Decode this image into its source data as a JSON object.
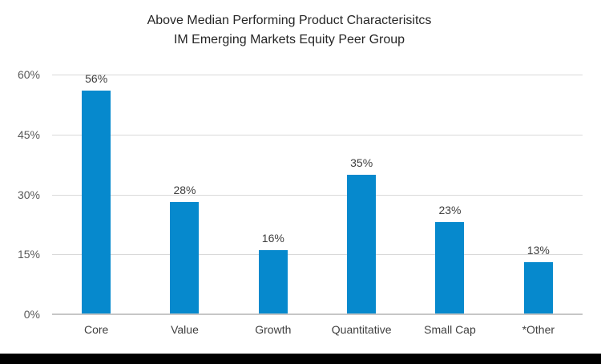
{
  "chart_data": {
    "type": "bar",
    "title": "Above Median Performing Product Characterisitcs",
    "subtitle": "IM Emerging Markets Equity Peer Group",
    "categories": [
      "Core",
      "Value",
      "Growth",
      "Quantitative",
      "Small Cap",
      "*Other"
    ],
    "values": [
      56,
      28,
      16,
      35,
      23,
      13
    ],
    "value_labels": [
      "56%",
      "28%",
      "16%",
      "35%",
      "23%",
      "13%"
    ],
    "xlabel": "",
    "ylabel": "",
    "ylim": [
      0,
      60
    ],
    "y_ticks": [
      "0%",
      "15%",
      "30%",
      "45%",
      "60%"
    ],
    "y_tick_values": [
      0,
      15,
      30,
      45,
      60
    ],
    "grid": true,
    "legend": false
  },
  "colors": {
    "bar": "#0689CD",
    "gridline": "#D9D9D9",
    "axis_line": "#C6C6C6",
    "title_text": "#262626",
    "tick_text": "#595959",
    "label_text": "#3F3F3F",
    "footer_bar": "#000000",
    "background": "#FFFFFF"
  }
}
